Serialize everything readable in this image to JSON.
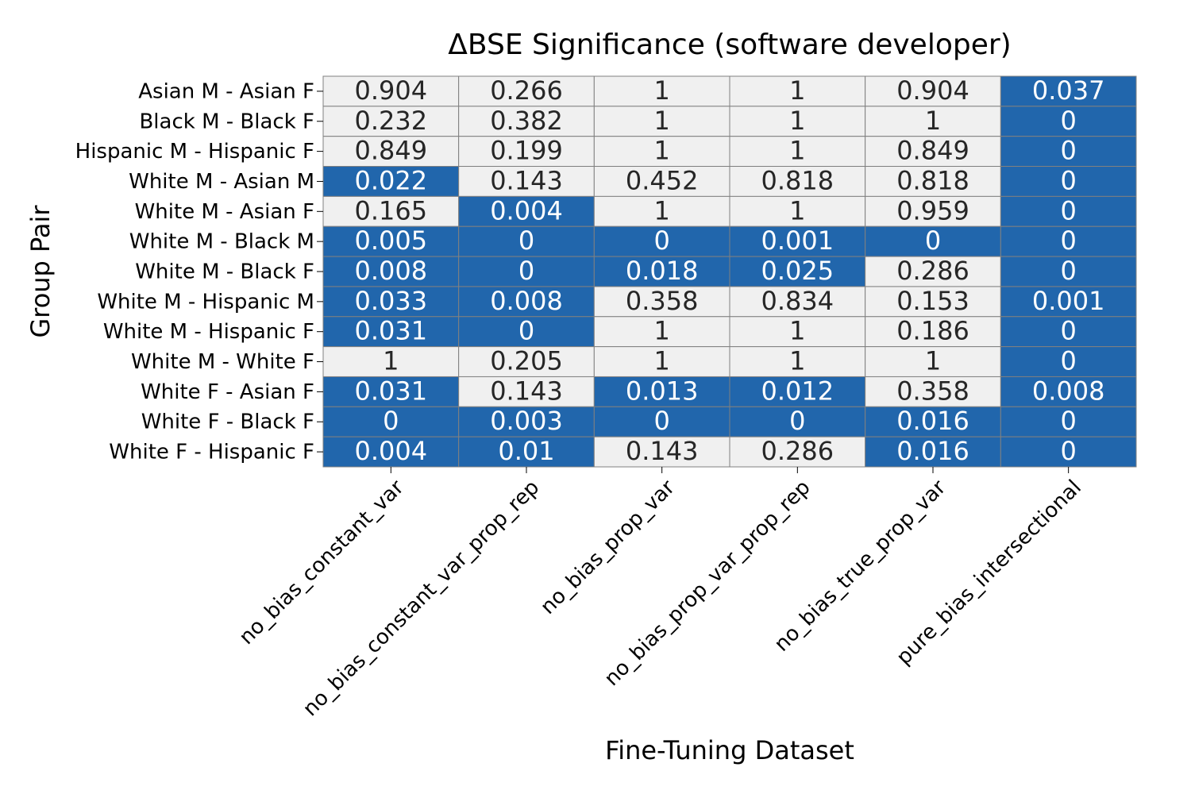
{
  "chart_data": {
    "type": "heatmap",
    "title": "ΔBSE Significance (software developer)",
    "xlabel": "Fine-Tuning Dataset",
    "ylabel": "Group Pair",
    "columns": [
      "no_bias_constant_var",
      "no_bias_constant_var_prop_rep",
      "no_bias_prop_var",
      "no_bias_prop_var_prop_rep",
      "no_bias_true_prop_var",
      "pure_bias_intersectional"
    ],
    "rows": [
      "Asian M - Asian F",
      "Black M - Black F",
      "Hispanic M - Hispanic F",
      "White M - Asian M",
      "White M - Asian F",
      "White M - Black M",
      "White M - Black F",
      "White M - Hispanic M",
      "White M - Hispanic F",
      "White M - White F",
      "White F - Asian F",
      "White F - Black F",
      "White F - Hispanic F"
    ],
    "values": [
      [
        "0.904",
        "0.266",
        "1",
        "1",
        "0.904",
        "0.037"
      ],
      [
        "0.232",
        "0.382",
        "1",
        "1",
        "1",
        "0"
      ],
      [
        "0.849",
        "0.199",
        "1",
        "1",
        "0.849",
        "0"
      ],
      [
        "0.022",
        "0.143",
        "0.452",
        "0.818",
        "0.818",
        "0"
      ],
      [
        "0.165",
        "0.004",
        "1",
        "1",
        "0.959",
        "0"
      ],
      [
        "0.005",
        "0",
        "0",
        "0.001",
        "0",
        "0"
      ],
      [
        "0.008",
        "0",
        "0.018",
        "0.025",
        "0.286",
        "0"
      ],
      [
        "0.033",
        "0.008",
        "0.358",
        "0.834",
        "0.153",
        "0.001"
      ],
      [
        "0.031",
        "0",
        "1",
        "1",
        "0.186",
        "0"
      ],
      [
        "1",
        "0.205",
        "1",
        "1",
        "1",
        "0"
      ],
      [
        "0.031",
        "0.143",
        "0.013",
        "0.012",
        "0.358",
        "0.008"
      ],
      [
        "0",
        "0.003",
        "0",
        "0",
        "0.016",
        "0"
      ],
      [
        "0.004",
        "0.01",
        "0.143",
        "0.286",
        "0.016",
        "0"
      ]
    ],
    "significance_threshold": 0.05,
    "colors": {
      "significant": "#2166ac",
      "not_significant": "#f0f0f0",
      "significant_text": "#ffffff",
      "not_significant_text": "#262626",
      "grid": "#808080"
    },
    "colorbar": false
  }
}
